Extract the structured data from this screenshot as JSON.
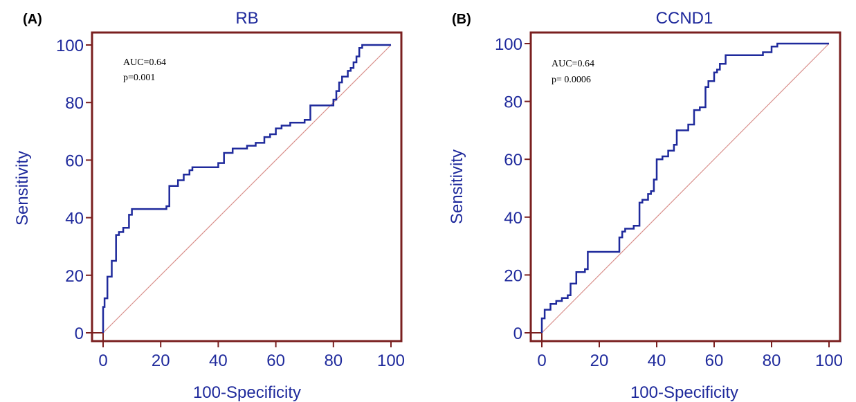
{
  "colors": {
    "frame": "#7a1f1f",
    "curve": "#1f2a9c",
    "diagonal": "#d9908c",
    "text": "#1f2a9c"
  },
  "chart_data": [
    {
      "type": "line",
      "panel_label": "(A)",
      "title": "RB",
      "xlabel": "100-Specificity",
      "ylabel": "Sensitivity",
      "xlim": [
        0,
        100
      ],
      "ylim": [
        0,
        100
      ],
      "xticks": [
        0,
        20,
        40,
        60,
        80,
        100
      ],
      "yticks": [
        0,
        20,
        40,
        60,
        80,
        100
      ],
      "annotations": [
        "AUC=0.64",
        "p=0.001"
      ],
      "grid": false,
      "series": [
        {
          "kind": "roc_step",
          "x": [
            0,
            0,
            0.5,
            0.5,
            1.5,
            1.5,
            3,
            3,
            4.5,
            4.5,
            5.5,
            5.5,
            7,
            7,
            9,
            9,
            10,
            10,
            22,
            22,
            23,
            23,
            26,
            26,
            28,
            28,
            30,
            30,
            31,
            31,
            40,
            40,
            42,
            42,
            45,
            45,
            50,
            50,
            53,
            53,
            56,
            56,
            58,
            58,
            60,
            60,
            62,
            62,
            65,
            65,
            70,
            70,
            72,
            72,
            80,
            80,
            81,
            81,
            82,
            82,
            83,
            83,
            85,
            85,
            86,
            86,
            87,
            87,
            88,
            88,
            89,
            89,
            90,
            90,
            92,
            92,
            100
          ],
          "y": [
            0,
            9,
            9,
            12,
            12,
            19.5,
            19.5,
            25,
            25,
            34,
            34,
            35,
            35,
            36.5,
            36.5,
            41,
            41,
            43,
            43,
            44,
            44,
            51,
            51,
            53,
            53,
            55,
            55,
            56.5,
            56.5,
            57.5,
            57.5,
            59,
            59,
            62.5,
            62.5,
            64,
            64,
            65,
            65,
            66,
            66,
            68,
            68,
            69,
            69,
            71,
            71,
            72,
            72,
            73,
            73,
            74,
            74,
            79,
            79,
            81,
            81,
            84,
            84,
            87,
            87,
            89,
            89,
            91,
            91,
            92,
            92,
            94,
            94,
            96,
            96,
            99,
            99,
            100,
            100,
            100,
            100
          ]
        },
        {
          "kind": "reference",
          "x": [
            0,
            100
          ],
          "y": [
            0,
            100
          ]
        }
      ]
    },
    {
      "type": "line",
      "panel_label": "(B)",
      "title": "CCND1",
      "xlabel": "100-Specificity",
      "ylabel": "Sensitivity",
      "xlim": [
        0,
        100
      ],
      "ylim": [
        0,
        100
      ],
      "xticks": [
        0,
        20,
        40,
        60,
        80,
        100
      ],
      "yticks": [
        0,
        20,
        40,
        60,
        80,
        100
      ],
      "annotations": [
        "AUC=0.64",
        "p= 0.0006"
      ],
      "grid": false,
      "series": [
        {
          "kind": "roc_step",
          "x": [
            0,
            0,
            1,
            1,
            3,
            3,
            5,
            5,
            7,
            7,
            9,
            9,
            10,
            10,
            12,
            12,
            15,
            15,
            16,
            16,
            27,
            27,
            28,
            28,
            29,
            29,
            32,
            32,
            34,
            34,
            35,
            35,
            37,
            37,
            38,
            38,
            39,
            39,
            40,
            40,
            42,
            42,
            44,
            44,
            46,
            46,
            47,
            47,
            51,
            51,
            53,
            53,
            55,
            55,
            57,
            57,
            58,
            58,
            60,
            60,
            61,
            61,
            62,
            62,
            64,
            64,
            77,
            77,
            80,
            80,
            82,
            82,
            100
          ],
          "y": [
            0,
            5,
            5,
            8,
            8,
            10,
            10,
            11,
            11,
            12,
            12,
            13,
            13,
            17,
            17,
            21,
            21,
            22,
            22,
            28,
            28,
            33,
            33,
            35,
            35,
            36,
            36,
            37,
            37,
            45,
            45,
            46,
            46,
            48,
            48,
            49,
            49,
            53,
            53,
            60,
            60,
            61,
            61,
            63,
            63,
            65,
            65,
            70,
            70,
            72,
            72,
            77,
            77,
            78,
            78,
            85,
            85,
            87,
            87,
            90,
            90,
            91,
            91,
            93,
            93,
            96,
            96,
            97,
            97,
            99,
            99,
            100,
            100
          ]
        },
        {
          "kind": "reference",
          "x": [
            0,
            100
          ],
          "y": [
            0,
            100
          ]
        }
      ]
    }
  ]
}
